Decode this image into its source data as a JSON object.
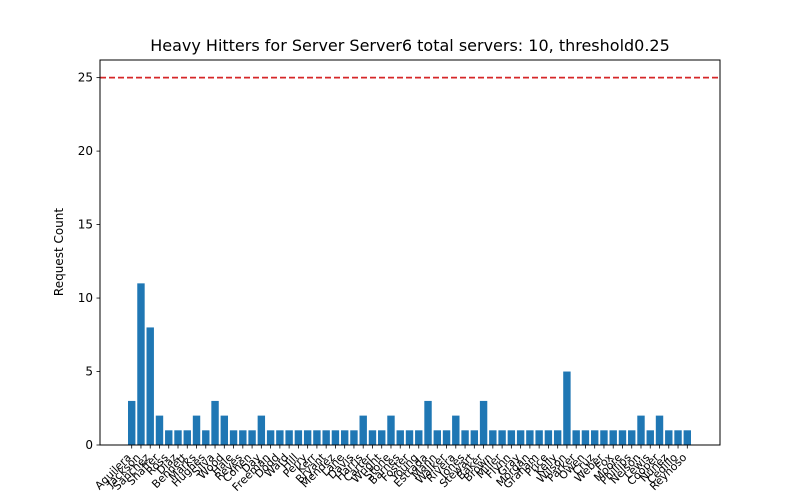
{
  "chart_data": {
    "type": "bar",
    "title": "Heavy Hitters for Server Server6 total servers: 10, threshold0.25",
    "xlabel": "",
    "ylabel": "Request Count",
    "ylim": [
      0,
      26.2
    ],
    "yticks": [
      0,
      5,
      10,
      15,
      20,
      25
    ],
    "threshold": 25,
    "grid": false,
    "bar_color": "#1f77b4",
    "threshold_color": "#d62728",
    "categories": [
      "Aguilera",
      "Jackson",
      "Sanchez",
      "Shaffer",
      "Ross",
      "Diaz",
      "Bennett",
      "Marks",
      "Hughes",
      "Silva",
      "Wood",
      "Hale",
      "Reyes",
      "Cohen",
      "Day",
      "Freeman",
      "Dodd",
      "Ward",
      "Hill",
      "Perry",
      "Kerr",
      "Bryant",
      "Mendez",
      "Lane",
      "Davis",
      "Harris",
      "Carter",
      "Wright",
      "Stone",
      "Barnes",
      "Foster",
      "Young",
      "Estrada",
      "Mann",
      "Walker",
      "Rivera",
      "Jones",
      "Stewart",
      "Baker",
      "Brown",
      "Miller",
      "Flynn",
      "Gray",
      "Morgan",
      "Graham",
      "Price",
      "Kelly",
      "Wilson",
      "Parker",
      "Owen",
      "Cruz",
      "Weber",
      "Fox",
      "Moore",
      "Phillips",
      "Nelson",
      "Lewis",
      "Cooper",
      "Nunez",
      "Cedillo",
      "Reynoso"
    ],
    "values": [
      3,
      11,
      8,
      2,
      1,
      1,
      1,
      2,
      1,
      3,
      2,
      1,
      1,
      1,
      2,
      1,
      1,
      1,
      1,
      1,
      1,
      1,
      1,
      1,
      1,
      2,
      1,
      1,
      2,
      1,
      1,
      1,
      3,
      1,
      1,
      2,
      1,
      1,
      3,
      1,
      1,
      1,
      1,
      1,
      1,
      1,
      1,
      5,
      1,
      1,
      1,
      1,
      1,
      1,
      1,
      2,
      1,
      2,
      1,
      1,
      1
    ]
  }
}
